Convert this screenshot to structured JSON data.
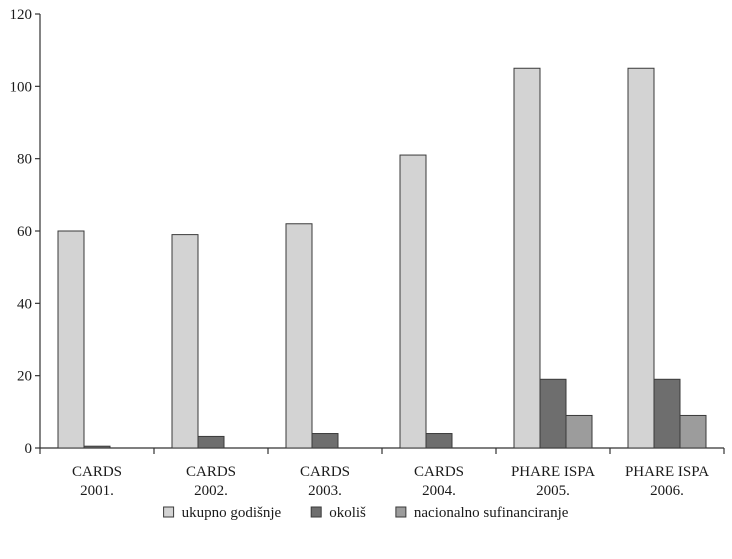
{
  "chart_data": {
    "type": "bar",
    "categories": [
      [
        "CARDS",
        "2001."
      ],
      [
        "CARDS",
        "2002."
      ],
      [
        "CARDS",
        "2003."
      ],
      [
        "CARDS",
        "2004."
      ],
      [
        "PHARE ISPA",
        "2005."
      ],
      [
        "PHARE ISPA",
        "2006."
      ]
    ],
    "series": [
      {
        "name": "ukupno godišnje",
        "color": "#d3d3d3",
        "values": [
          60,
          59,
          62,
          81,
          105,
          105
        ]
      },
      {
        "name": "okoliš",
        "color": "#6e6e6e",
        "values": [
          0.5,
          3.2,
          4,
          4,
          19,
          19
        ]
      },
      {
        "name": "nacionalno sufinanciranje",
        "color": "#9c9c9c",
        "values": [
          0,
          0,
          0,
          0,
          9,
          9
        ]
      }
    ],
    "yticks": [
      "0",
      "20",
      "40",
      "60",
      "80",
      "100",
      "120"
    ],
    "ylim": [
      0,
      120
    ],
    "grid": false,
    "legend_position": "bottom-center",
    "title": "",
    "xlabel": "",
    "ylabel": ""
  }
}
